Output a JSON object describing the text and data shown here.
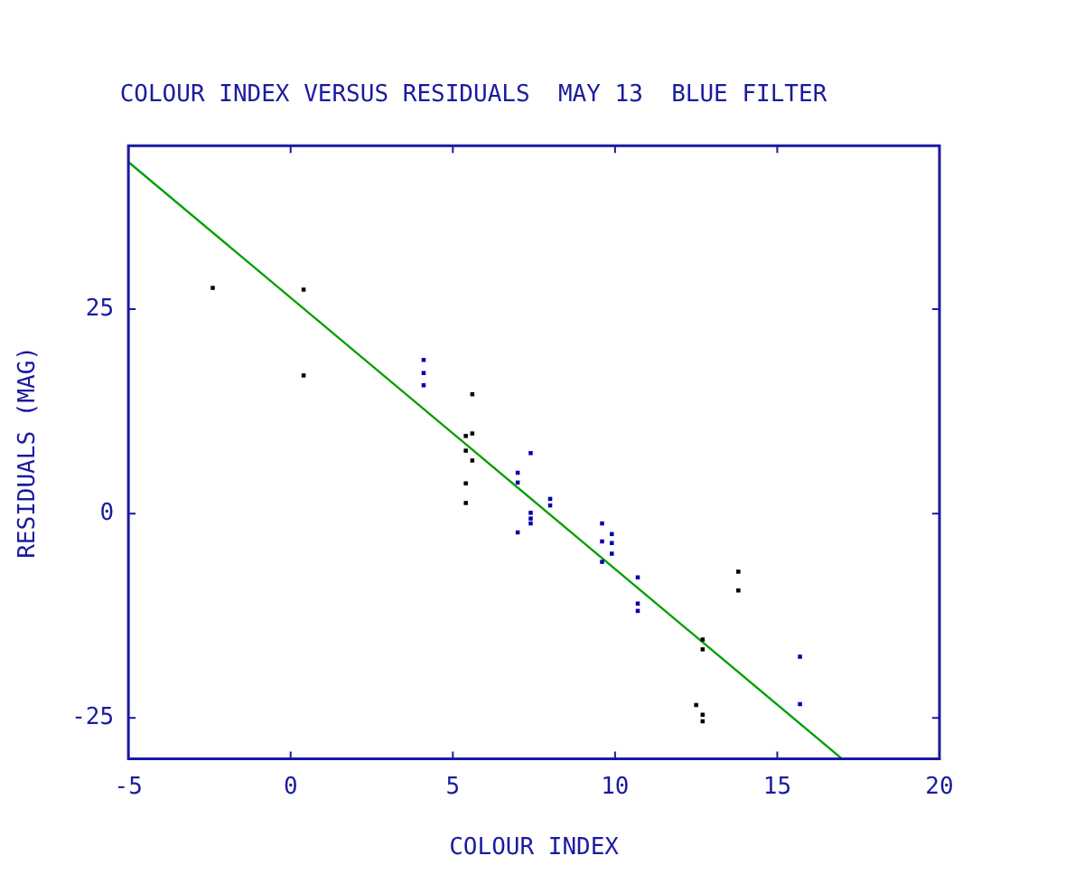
{
  "chart_data": {
    "type": "scatter",
    "title": "COLOUR INDEX VERSUS RESIDUALS  MAY 13  BLUE FILTER",
    "xlabel": "COLOUR INDEX",
    "ylabel": "RESIDUALS (MAG)",
    "xlim": [
      -5,
      20
    ],
    "ylim": [
      -30,
      45
    ],
    "xticks": [
      -5,
      0,
      5,
      10,
      15,
      20
    ],
    "yticks": [
      -25,
      0,
      25
    ],
    "grid": false,
    "legend": false,
    "marker": "square",
    "series": [
      {
        "color": "#000000",
        "x": [
          -2.4,
          0.4,
          0.4,
          5.6,
          5.4,
          5.6,
          5.4,
          5.6,
          5.4,
          5.4,
          13.8,
          13.8,
          12.7,
          12.7,
          12.5,
          12.7,
          12.7
        ],
        "values": [
          27.6,
          27.4,
          16.9,
          14.6,
          9.5,
          9.8,
          7.7,
          6.5,
          3.7,
          1.3,
          -7.1,
          -9.4,
          -15.4,
          -16.6,
          -23.4,
          -24.6,
          -25.4
        ]
      },
      {
        "color": "#0000aa",
        "x": [
          4.1,
          4.1,
          4.1,
          7.4,
          7.0,
          7.0,
          7.0,
          8.0,
          8.0,
          7.4,
          7.4,
          7.4,
          9.6,
          9.6,
          9.6,
          9.9,
          9.9,
          9.9,
          10.7,
          10.7,
          10.7,
          15.7,
          15.7
        ],
        "values": [
          18.8,
          17.2,
          15.7,
          7.4,
          5.0,
          3.8,
          -2.3,
          1.8,
          1.0,
          0.1,
          -0.6,
          -1.2,
          -1.2,
          -3.4,
          -5.9,
          -2.5,
          -3.6,
          -4.9,
          -7.8,
          -11.0,
          -11.9,
          -17.5,
          -23.3
        ]
      },
      {
        "type": "line",
        "color": "#00a000",
        "marker": "none",
        "x": [
          -5,
          17
        ],
        "values": [
          43,
          -30
        ]
      }
    ]
  }
}
